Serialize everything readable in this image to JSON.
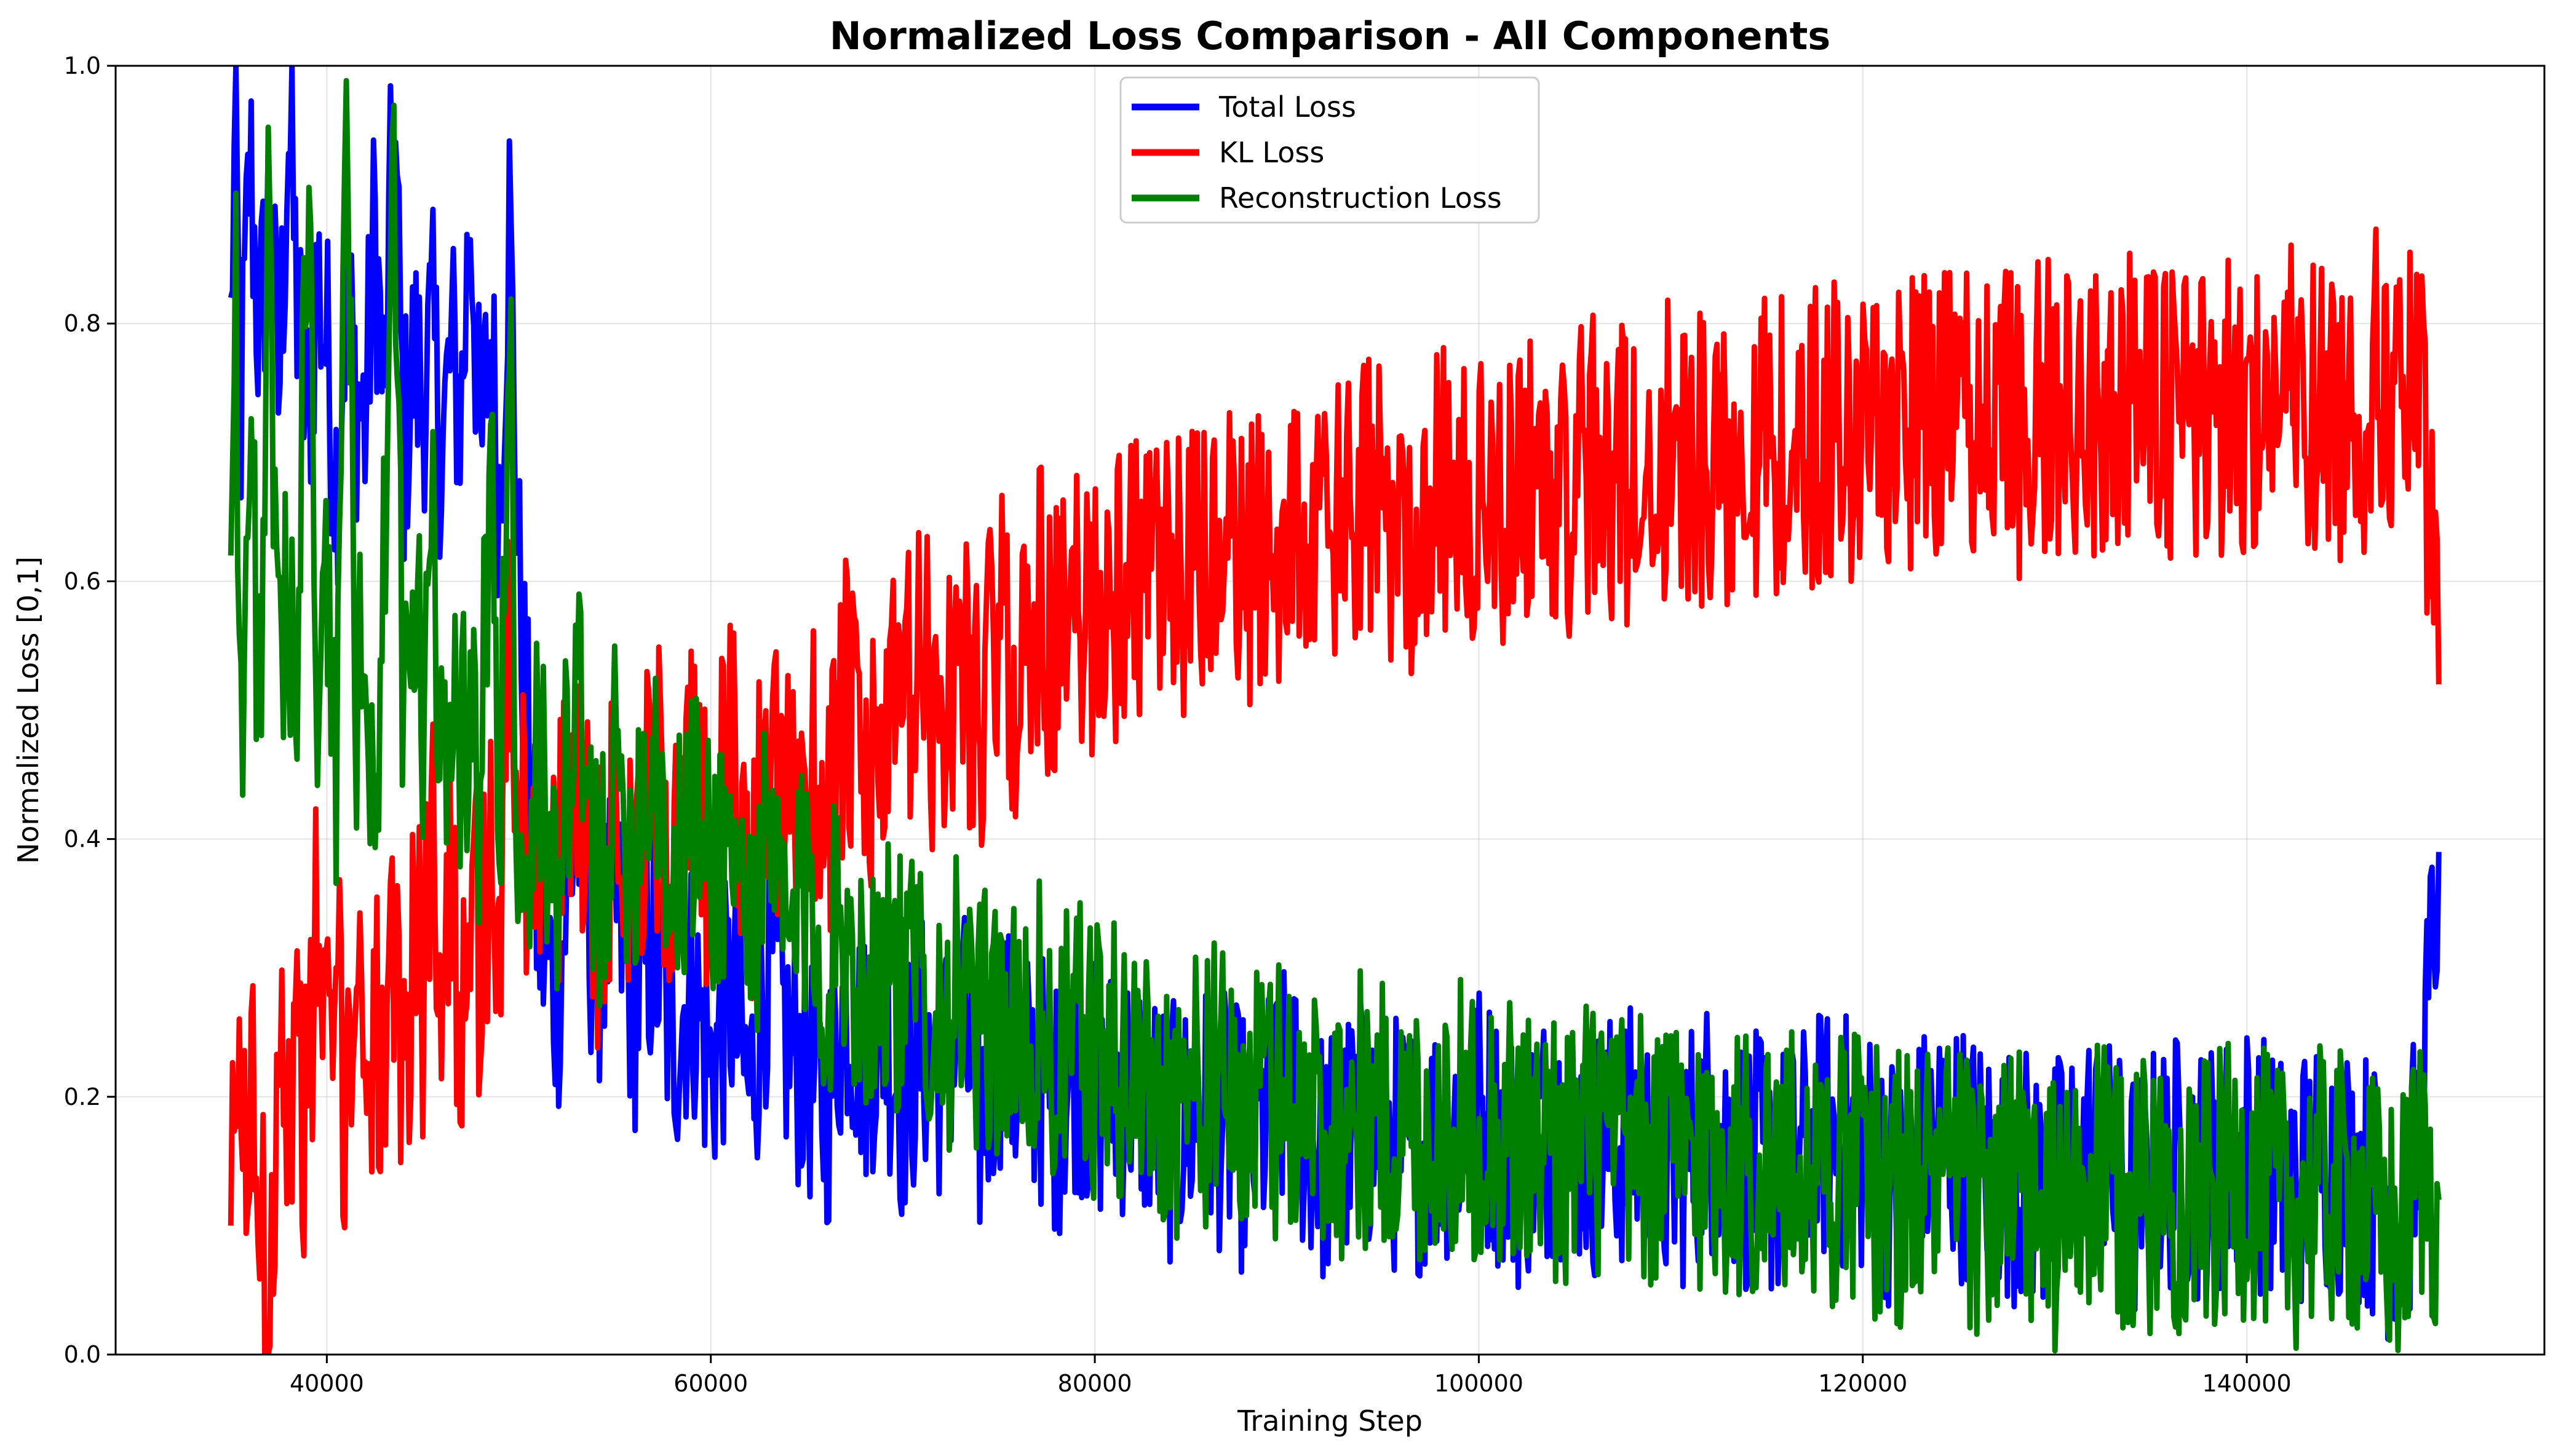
{
  "chart_data": {
    "type": "line",
    "title": "Normalized Loss Comparison - All Components",
    "xlabel": "Training Step",
    "ylabel": "Normalized Loss [0,1]",
    "xlim": [
      29000,
      155500
    ],
    "ylim": [
      0,
      1
    ],
    "xticks": [
      40000,
      60000,
      80000,
      100000,
      120000,
      140000
    ],
    "xtick_labels": [
      "40000",
      "60000",
      "80000",
      "100000",
      "120000",
      "140000"
    ],
    "yticks": [
      0.0,
      0.2,
      0.4,
      0.6,
      0.8,
      1.0
    ],
    "ytick_labels": [
      "0.0",
      "0.2",
      "0.4",
      "0.6",
      "0.8",
      "1.0"
    ],
    "grid": true,
    "legend_position": "top-center",
    "series": [
      {
        "name": "Total Loss",
        "color": "#0000ff",
        "x": [
          35000,
          35250,
          35500,
          36000,
          36500,
          37000,
          37500,
          38000,
          38500,
          39000,
          39500,
          40000,
          40500,
          41000,
          41500,
          42000,
          42500,
          43000,
          43500,
          44000,
          44500,
          45000,
          45500,
          46000,
          46500,
          47000,
          47500,
          48000,
          48500,
          49000,
          49500,
          50000,
          51000,
          52000,
          53000,
          54000,
          55000,
          56000,
          57000,
          58000,
          59000,
          60000,
          61000,
          62000,
          63000,
          64000,
          65000,
          66000,
          67000,
          68000,
          69000,
          70000,
          71000,
          72000,
          73000,
          74000,
          75000,
          76000,
          77000,
          78000,
          79000,
          80000,
          82000,
          84000,
          86000,
          88000,
          90000,
          92000,
          94000,
          96000,
          98000,
          100000,
          102000,
          104000,
          106000,
          108000,
          110000,
          112000,
          114000,
          116000,
          118000,
          120000,
          122000,
          124000,
          126000,
          128000,
          130000,
          132000,
          134000,
          136000,
          138000,
          140000,
          142000,
          144000,
          146000,
          147000,
          148000,
          149000,
          150000
        ],
        "y": [
          0.82,
          0.95,
          0.72,
          0.93,
          0.78,
          0.9,
          0.74,
          0.96,
          0.8,
          0.72,
          0.84,
          0.78,
          0.68,
          0.82,
          0.75,
          0.72,
          0.88,
          0.73,
          0.97,
          0.7,
          0.77,
          0.75,
          0.79,
          0.7,
          0.78,
          0.73,
          0.9,
          0.68,
          0.8,
          0.66,
          0.89,
          0.6,
          0.33,
          0.28,
          0.42,
          0.3,
          0.35,
          0.27,
          0.32,
          0.24,
          0.29,
          0.22,
          0.28,
          0.2,
          0.31,
          0.24,
          0.22,
          0.19,
          0.28,
          0.23,
          0.26,
          0.2,
          0.24,
          0.22,
          0.26,
          0.18,
          0.25,
          0.21,
          0.22,
          0.19,
          0.23,
          0.2,
          0.21,
          0.17,
          0.19,
          0.16,
          0.2,
          0.15,
          0.18,
          0.16,
          0.17,
          0.19,
          0.15,
          0.18,
          0.16,
          0.17,
          0.14,
          0.18,
          0.15,
          0.14,
          0.17,
          0.16,
          0.13,
          0.17,
          0.15,
          0.14,
          0.13,
          0.16,
          0.12,
          0.15,
          0.14,
          0.16,
          0.13,
          0.15,
          0.14,
          0.12,
          0.1,
          0.16,
          0.39
        ],
        "noise": 0.065
      },
      {
        "name": "KL Loss",
        "color": "#ff0000",
        "x": [
          35000,
          35250,
          35500,
          36000,
          36500,
          37000,
          37500,
          38000,
          38500,
          39000,
          39500,
          40000,
          40500,
          41000,
          41500,
          42000,
          42500,
          43000,
          43500,
          44000,
          44500,
          45000,
          45500,
          46000,
          46500,
          47000,
          47500,
          48000,
          48500,
          49000,
          49500,
          50000,
          51000,
          52000,
          53000,
          54000,
          55000,
          56000,
          57000,
          58000,
          59000,
          60000,
          61000,
          62000,
          63000,
          64000,
          65000,
          66000,
          67000,
          68000,
          69000,
          70000,
          71000,
          72000,
          73000,
          74000,
          75000,
          76000,
          77000,
          78000,
          79000,
          80000,
          82000,
          84000,
          86000,
          88000,
          90000,
          92000,
          94000,
          96000,
          98000,
          100000,
          102000,
          104000,
          106000,
          108000,
          110000,
          112000,
          114000,
          116000,
          118000,
          120000,
          122000,
          124000,
          126000,
          128000,
          130000,
          132000,
          134000,
          136000,
          138000,
          140000,
          142000,
          144000,
          146000,
          147000,
          148000,
          149000,
          150000
        ],
        "y": [
          0.1,
          0.23,
          0.15,
          0.2,
          0.12,
          0.02,
          0.3,
          0.18,
          0.25,
          0.16,
          0.35,
          0.22,
          0.28,
          0.2,
          0.31,
          0.24,
          0.27,
          0.18,
          0.29,
          0.22,
          0.33,
          0.28,
          0.42,
          0.3,
          0.36,
          0.27,
          0.4,
          0.3,
          0.38,
          0.33,
          0.55,
          0.4,
          0.42,
          0.36,
          0.48,
          0.35,
          0.42,
          0.4,
          0.45,
          0.38,
          0.43,
          0.4,
          0.46,
          0.38,
          0.44,
          0.41,
          0.47,
          0.43,
          0.5,
          0.44,
          0.47,
          0.5,
          0.53,
          0.48,
          0.55,
          0.5,
          0.56,
          0.52,
          0.58,
          0.55,
          0.57,
          0.58,
          0.6,
          0.59,
          0.62,
          0.61,
          0.64,
          0.63,
          0.66,
          0.64,
          0.67,
          0.65,
          0.68,
          0.67,
          0.69,
          0.68,
          0.7,
          0.69,
          0.71,
          0.7,
          0.72,
          0.71,
          0.73,
          0.72,
          0.74,
          0.72,
          0.74,
          0.73,
          0.75,
          0.72,
          0.74,
          0.73,
          0.75,
          0.73,
          0.74,
          0.76,
          0.73,
          0.75,
          0.52
        ],
        "noise": 0.075
      },
      {
        "name": "Reconstruction Loss",
        "color": "#008000",
        "x": [
          35000,
          35250,
          35500,
          36000,
          36500,
          37000,
          37500,
          38000,
          38500,
          39000,
          39500,
          40000,
          40500,
          41000,
          41500,
          42000,
          42500,
          43000,
          43500,
          44000,
          44500,
          45000,
          45500,
          46000,
          46500,
          47000,
          47500,
          48000,
          48500,
          49000,
          49500,
          50000,
          51000,
          52000,
          53000,
          54000,
          55000,
          56000,
          57000,
          58000,
          59000,
          60000,
          61000,
          62000,
          63000,
          64000,
          65000,
          66000,
          67000,
          68000,
          69000,
          70000,
          71000,
          72000,
          73000,
          74000,
          75000,
          76000,
          77000,
          78000,
          79000,
          80000,
          82000,
          84000,
          86000,
          88000,
          90000,
          92000,
          94000,
          96000,
          98000,
          100000,
          102000,
          104000,
          106000,
          108000,
          110000,
          112000,
          114000,
          116000,
          118000,
          120000,
          122000,
          124000,
          126000,
          128000,
          130000,
          132000,
          134000,
          136000,
          138000,
          140000,
          142000,
          144000,
          146000,
          147000,
          148000,
          149000,
          150000
        ],
        "y": [
          0.62,
          0.9,
          0.45,
          0.7,
          0.52,
          0.88,
          0.48,
          0.6,
          0.55,
          0.92,
          0.5,
          0.58,
          0.45,
          1.0,
          0.5,
          0.55,
          0.42,
          0.6,
          0.94,
          0.45,
          0.58,
          0.5,
          0.62,
          0.44,
          0.55,
          0.48,
          0.5,
          0.42,
          0.7,
          0.4,
          0.82,
          0.35,
          0.45,
          0.38,
          0.5,
          0.36,
          0.44,
          0.4,
          0.48,
          0.35,
          0.42,
          0.38,
          0.4,
          0.34,
          0.38,
          0.32,
          0.36,
          0.3,
          0.34,
          0.28,
          0.32,
          0.27,
          0.3,
          0.26,
          0.28,
          0.24,
          0.27,
          0.23,
          0.26,
          0.22,
          0.25,
          0.23,
          0.22,
          0.2,
          0.21,
          0.19,
          0.2,
          0.18,
          0.19,
          0.17,
          0.18,
          0.18,
          0.17,
          0.16,
          0.17,
          0.15,
          0.16,
          0.15,
          0.15,
          0.14,
          0.15,
          0.14,
          0.13,
          0.14,
          0.12,
          0.13,
          0.1,
          0.13,
          0.12,
          0.13,
          0.12,
          0.14,
          0.11,
          0.13,
          0.12,
          0.1,
          0.09,
          0.15,
          0.12
        ],
        "noise": 0.07
      }
    ]
  }
}
